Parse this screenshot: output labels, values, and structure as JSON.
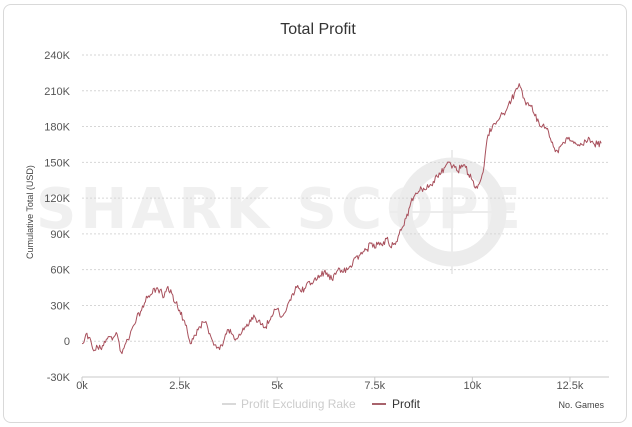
{
  "chart_data": {
    "type": "line",
    "title": "Total Profit",
    "ylabel": "Cumulative Total (USD)",
    "xlabel": "",
    "x_note": "No. Games",
    "xlim": [
      0,
      13500
    ],
    "ylim": [
      -30000,
      240000
    ],
    "x_ticks": [
      0,
      2500,
      5000,
      7500,
      10000,
      12500
    ],
    "x_tick_labels": [
      "0k",
      "2.5k",
      "5k",
      "7.5k",
      "10k",
      "12.5k"
    ],
    "y_ticks": [
      -30000,
      0,
      30000,
      60000,
      90000,
      120000,
      150000,
      180000,
      210000,
      240000
    ],
    "y_tick_labels": [
      "-30K",
      "0",
      "30K",
      "60K",
      "90K",
      "120K",
      "150K",
      "180K",
      "210K",
      "240K"
    ],
    "grid": "horizontal-dashed",
    "legend_position": "bottom-center",
    "watermark": "SHARK SCOPE",
    "legend": [
      {
        "name": "Profit Excluding Rake",
        "color": "#d0d0d0",
        "active": false
      },
      {
        "name": "Profit",
        "color": "#8b2f3a",
        "active": true
      }
    ],
    "series": [
      {
        "name": "Profit",
        "color": "#a8505c",
        "x": [
          0,
          100,
          200,
          300,
          400,
          500,
          600,
          700,
          800,
          900,
          1000,
          1100,
          1200,
          1300,
          1400,
          1500,
          1600,
          1700,
          1800,
          1900,
          2000,
          2100,
          2200,
          2300,
          2400,
          2500,
          2600,
          2700,
          2800,
          2900,
          3000,
          3100,
          3200,
          3300,
          3400,
          3500,
          3600,
          3700,
          3800,
          3900,
          4000,
          4100,
          4200,
          4300,
          4400,
          4500,
          4600,
          4700,
          4800,
          4900,
          5000,
          5100,
          5200,
          5300,
          5400,
          5500,
          5600,
          5700,
          5800,
          5900,
          6000,
          6100,
          6200,
          6300,
          6400,
          6500,
          6600,
          6700,
          6800,
          6900,
          7000,
          7100,
          7200,
          7300,
          7400,
          7500,
          7600,
          7700,
          7800,
          7900,
          8000,
          8100,
          8200,
          8300,
          8400,
          8500,
          8600,
          8700,
          8800,
          8900,
          9000,
          9100,
          9200,
          9300,
          9400,
          9500,
          9600,
          9700,
          9800,
          9900,
          10000,
          10100,
          10200,
          10300,
          10400,
          10500,
          10600,
          10700,
          10800,
          10900,
          11000,
          11100,
          11200,
          11300,
          11400,
          11500,
          11600,
          11700,
          11800,
          11900,
          12000,
          12100,
          12200,
          12300,
          12400,
          12500,
          12600,
          12700,
          12800,
          12900,
          13000,
          13100,
          13200,
          13300
        ],
        "values": [
          -2000,
          6000,
          3000,
          -8000,
          -5000,
          -7000,
          -1000,
          4000,
          3000,
          6000,
          -9000,
          -3000,
          1000,
          12000,
          20000,
          25000,
          32000,
          38000,
          40000,
          44000,
          43000,
          37000,
          46000,
          40000,
          32000,
          26000,
          18000,
          8000,
          -2000,
          5000,
          12000,
          16000,
          14000,
          4000,
          -3000,
          -5000,
          -4000,
          6000,
          10000,
          2000,
          3000,
          8000,
          12000,
          18000,
          22000,
          16000,
          14000,
          12000,
          17000,
          23000,
          27000,
          20000,
          24000,
          33000,
          40000,
          45000,
          42000,
          44000,
          50000,
          48000,
          51000,
          55000,
          58000,
          54000,
          52000,
          56000,
          61000,
          58000,
          60000,
          62000,
          70000,
          72000,
          75000,
          77000,
          82000,
          78000,
          83000,
          80000,
          86000,
          79000,
          82000,
          88000,
          95000,
          103000,
          113000,
          121000,
          124000,
          128000,
          127000,
          130000,
          134000,
          138000,
          141000,
          146000,
          150000,
          147000,
          143000,
          145000,
          148000,
          140000,
          135000,
          130000,
          134000,
          147000,
          173000,
          178000,
          182000,
          187000,
          191000,
          196000,
          202000,
          210000,
          216000,
          204000,
          200000,
          197000,
          189000,
          184000,
          181000,
          178000,
          170000,
          162000,
          158000,
          165000,
          170000,
          168000,
          166000,
          164000,
          165000,
          168000,
          170000,
          166000,
          165000,
          166000
        ]
      }
    ]
  }
}
